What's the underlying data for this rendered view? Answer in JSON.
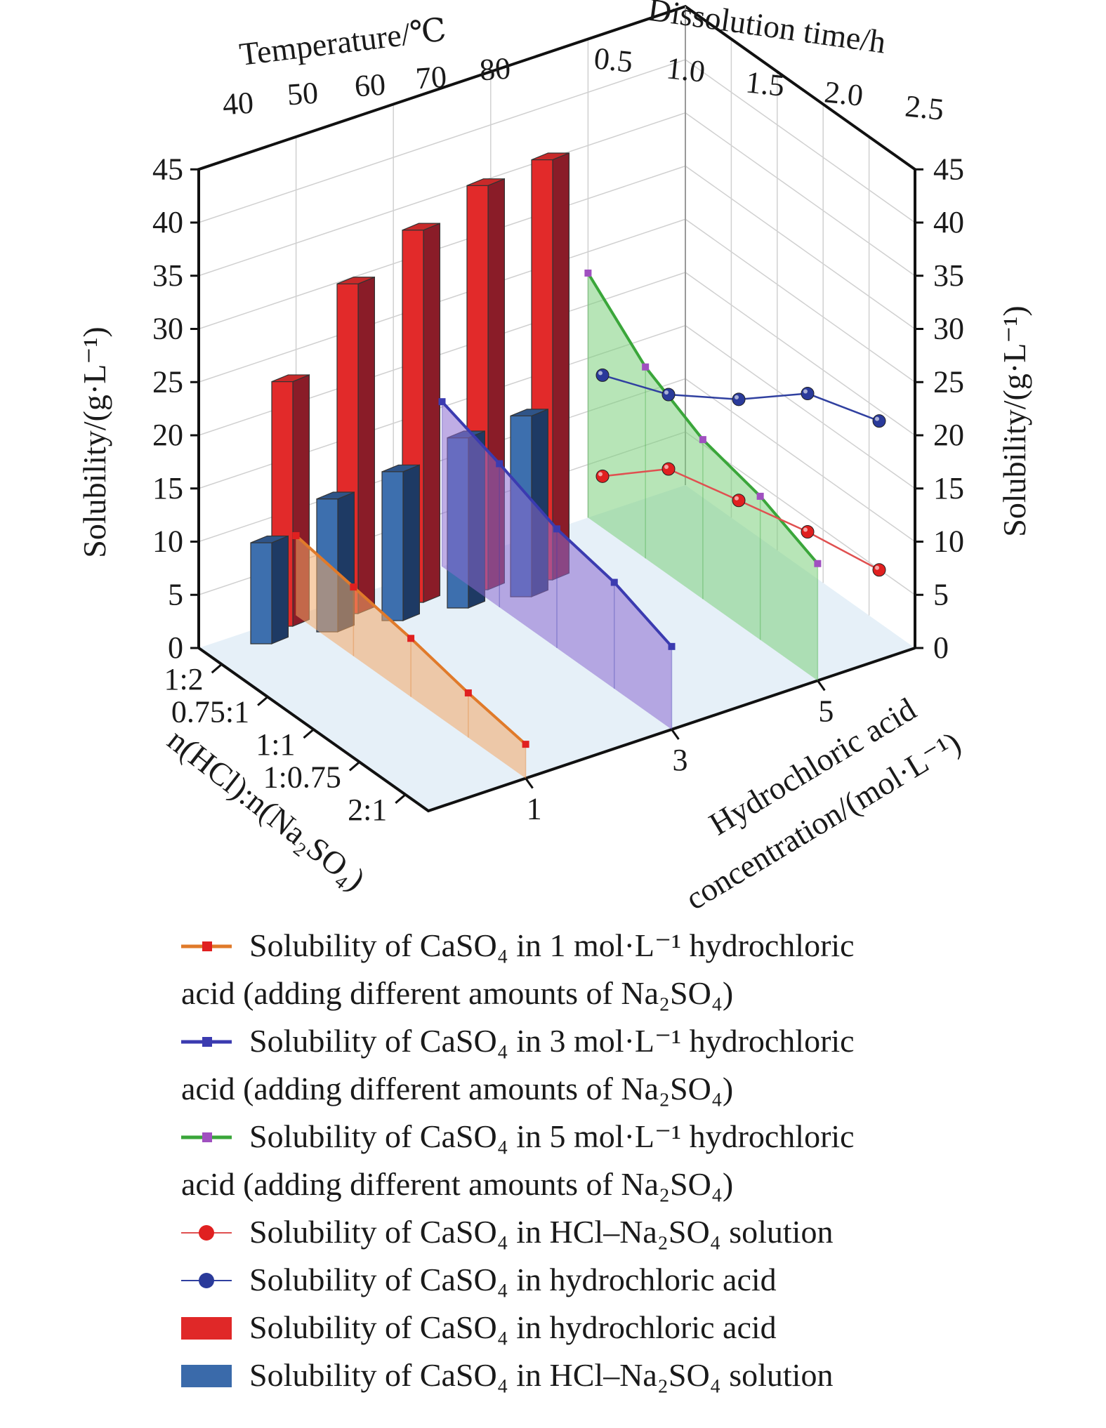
{
  "chart_data": {
    "type": "3d-composite",
    "axes": {
      "top_left_label": "Temperature/℃",
      "top_right_label": "Dissolution time/h",
      "left_vertical_label": "Solubility/(g·L⁻¹)",
      "right_vertical_label": "Solubility/(g·L⁻¹)",
      "bottom_left_label": "n(HCl):n(Na₂SO₄)",
      "bottom_right_label_line1": "Hydrochloric acid",
      "bottom_right_label_line2": "concentration/(mol·L⁻¹)",
      "y_ticks": [
        "0",
        "5",
        "10",
        "15",
        "20",
        "25",
        "30",
        "35",
        "40",
        "45"
      ],
      "ylim": [
        0,
        45
      ],
      "temperature_ticks": [
        "40",
        "50",
        "60",
        "70",
        "80"
      ],
      "time_ticks": [
        "0.5",
        "1.0",
        "1.5",
        "2.0",
        "2.5"
      ],
      "ratio_ticks": [
        "1:2",
        "0.75:1",
        "1:1",
        "1:0.75",
        "2:1"
      ],
      "concentration_ticks": [
        "1",
        "3",
        "5"
      ]
    },
    "bars_temperature": {
      "x": [
        40,
        50,
        60,
        70,
        80
      ],
      "hcl_red": [
        23,
        31,
        35,
        38,
        39.5
      ],
      "hcl_na2so4_blue": [
        9.5,
        12.5,
        14,
        16,
        17
      ]
    },
    "dissolution_time": {
      "x": [
        0.5,
        1.0,
        1.5,
        2.0,
        2.5
      ],
      "hydrochloric_acid_blue": [
        24,
        23.5,
        24.5,
        26.5,
        25.5
      ],
      "hcl_na2so4_red": [
        14.5,
        16.5,
        15,
        13.5,
        11.5
      ]
    },
    "ratio_lines": {
      "x": [
        "1:2",
        "0.75:1",
        "1:1",
        "1:0.75",
        "2:1"
      ],
      "series": [
        {
          "conc": "1",
          "values": [
            7.5,
            6.5,
            5.5,
            4.2,
            3.2
          ]
        },
        {
          "conc": "3",
          "values": [
            15.5,
            13.5,
            11.2,
            10.0,
            7.8
          ]
        },
        {
          "conc": "5",
          "values": [
            23,
            18,
            15,
            13.5,
            11
          ]
        }
      ]
    },
    "legend": [
      {
        "key": "l1",
        "marker": "line-square",
        "color": "#e07a2a",
        "mcolor": "#e02020",
        "lines": [
          "Solubility of CaSO₄ in 1 mol·L⁻¹ hydrochloric",
          "acid (adding different amounts of Na₂SO₄)"
        ]
      },
      {
        "key": "l3",
        "marker": "line-square",
        "color": "#3b3bb0",
        "mcolor": "#3b3bb0",
        "lines": [
          "Solubility of CaSO₄ in 3 mol·L⁻¹ hydrochloric",
          "acid (adding different amounts of Na₂SO₄)"
        ]
      },
      {
        "key": "l5",
        "marker": "line-square",
        "color": "#3aa63a",
        "mcolor": "#a050c0",
        "lines": [
          "Solubility of CaSO₄ in 5 mol·L⁻¹ hydrochloric",
          "acid (adding different amounts of Na₂SO₄)"
        ]
      },
      {
        "key": "r",
        "marker": "line-ball",
        "color": "#e05050",
        "mcolor": "#e02020",
        "lines": [
          "Solubility of CaSO₄ in HCl–Na₂SO₄ solution"
        ]
      },
      {
        "key": "b",
        "marker": "line-ball",
        "color": "#3040a0",
        "mcolor": "#2a3a9a",
        "lines": [
          "Solubility of CaSO₄ in hydrochloric acid"
        ]
      },
      {
        "key": "rb",
        "marker": "box",
        "color": "#e02828",
        "mcolor": "#e02828",
        "lines": [
          "Solubility of CaSO₄ in hydrochloric acid"
        ]
      },
      {
        "key": "bb",
        "marker": "box",
        "color": "#3a6aaa",
        "mcolor": "#3a6aaa",
        "lines": [
          "Solubility of CaSO₄ in HCl–Na₂SO₄ solution"
        ]
      }
    ]
  }
}
